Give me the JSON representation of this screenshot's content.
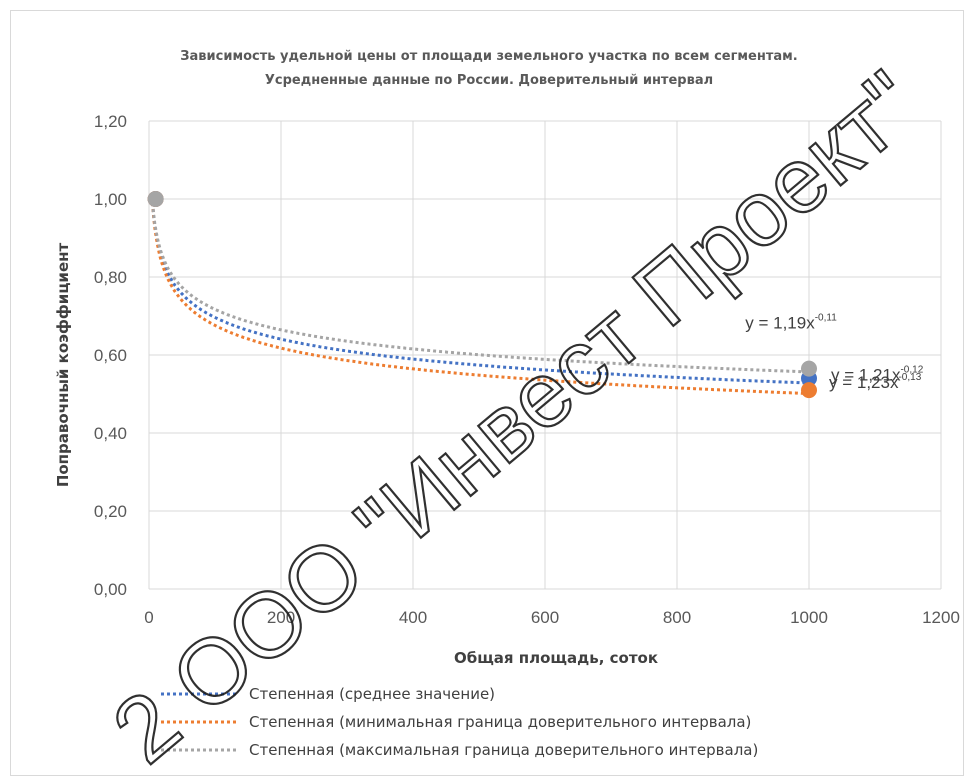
{
  "chart_data": {
    "type": "line",
    "title_line1": "Зависимость удельной цены от площади земельного участка по всем сегментам.",
    "title_line2": "Усредненные данные по России. Доверительный интервал",
    "xlabel": "Общая площадь, соток",
    "ylabel": "Поправочный коэффициент",
    "xlim": [
      0,
      1200
    ],
    "ylim": [
      0,
      1.2
    ],
    "x_ticks": [
      "0",
      "200",
      "400",
      "600",
      "800",
      "1000",
      "1200"
    ],
    "y_ticks": [
      "0,00",
      "0,20",
      "0,40",
      "0,60",
      "0,80",
      "1,00",
      "1,20"
    ],
    "grid": true,
    "legend_position": "bottom",
    "series": [
      {
        "name": "Степенная (среднее значение)",
        "color": "#4472c4",
        "coef": 1.21,
        "exponent": -0.12,
        "equation": {
          "base": "y = 1,21x",
          "exp": "-0,12"
        },
        "points": [
          {
            "x": 10,
            "y": 1.0
          },
          {
            "x": 1000,
            "y": 0.54
          }
        ]
      },
      {
        "name": "Степенная (минимальная граница доверительного интервала)",
        "color": "#ed7d31",
        "coef": 1.23,
        "exponent": -0.13,
        "equation": {
          "base": "y = 1,23x",
          "exp": "-0,13"
        },
        "points": [
          {
            "x": 10,
            "y": 1.0
          },
          {
            "x": 1000,
            "y": 0.51
          }
        ]
      },
      {
        "name": "Степенная (максимальная граница доверительного интервала)",
        "color": "#a5a5a5",
        "coef": 1.19,
        "exponent": -0.11,
        "equation": {
          "base": "y = 1,19x",
          "exp": "-0,11"
        },
        "points": [
          {
            "x": 10,
            "y": 1.0
          },
          {
            "x": 1000,
            "y": 0.565
          }
        ]
      }
    ]
  },
  "watermark": "2 ООО \"Инвест Проект\""
}
